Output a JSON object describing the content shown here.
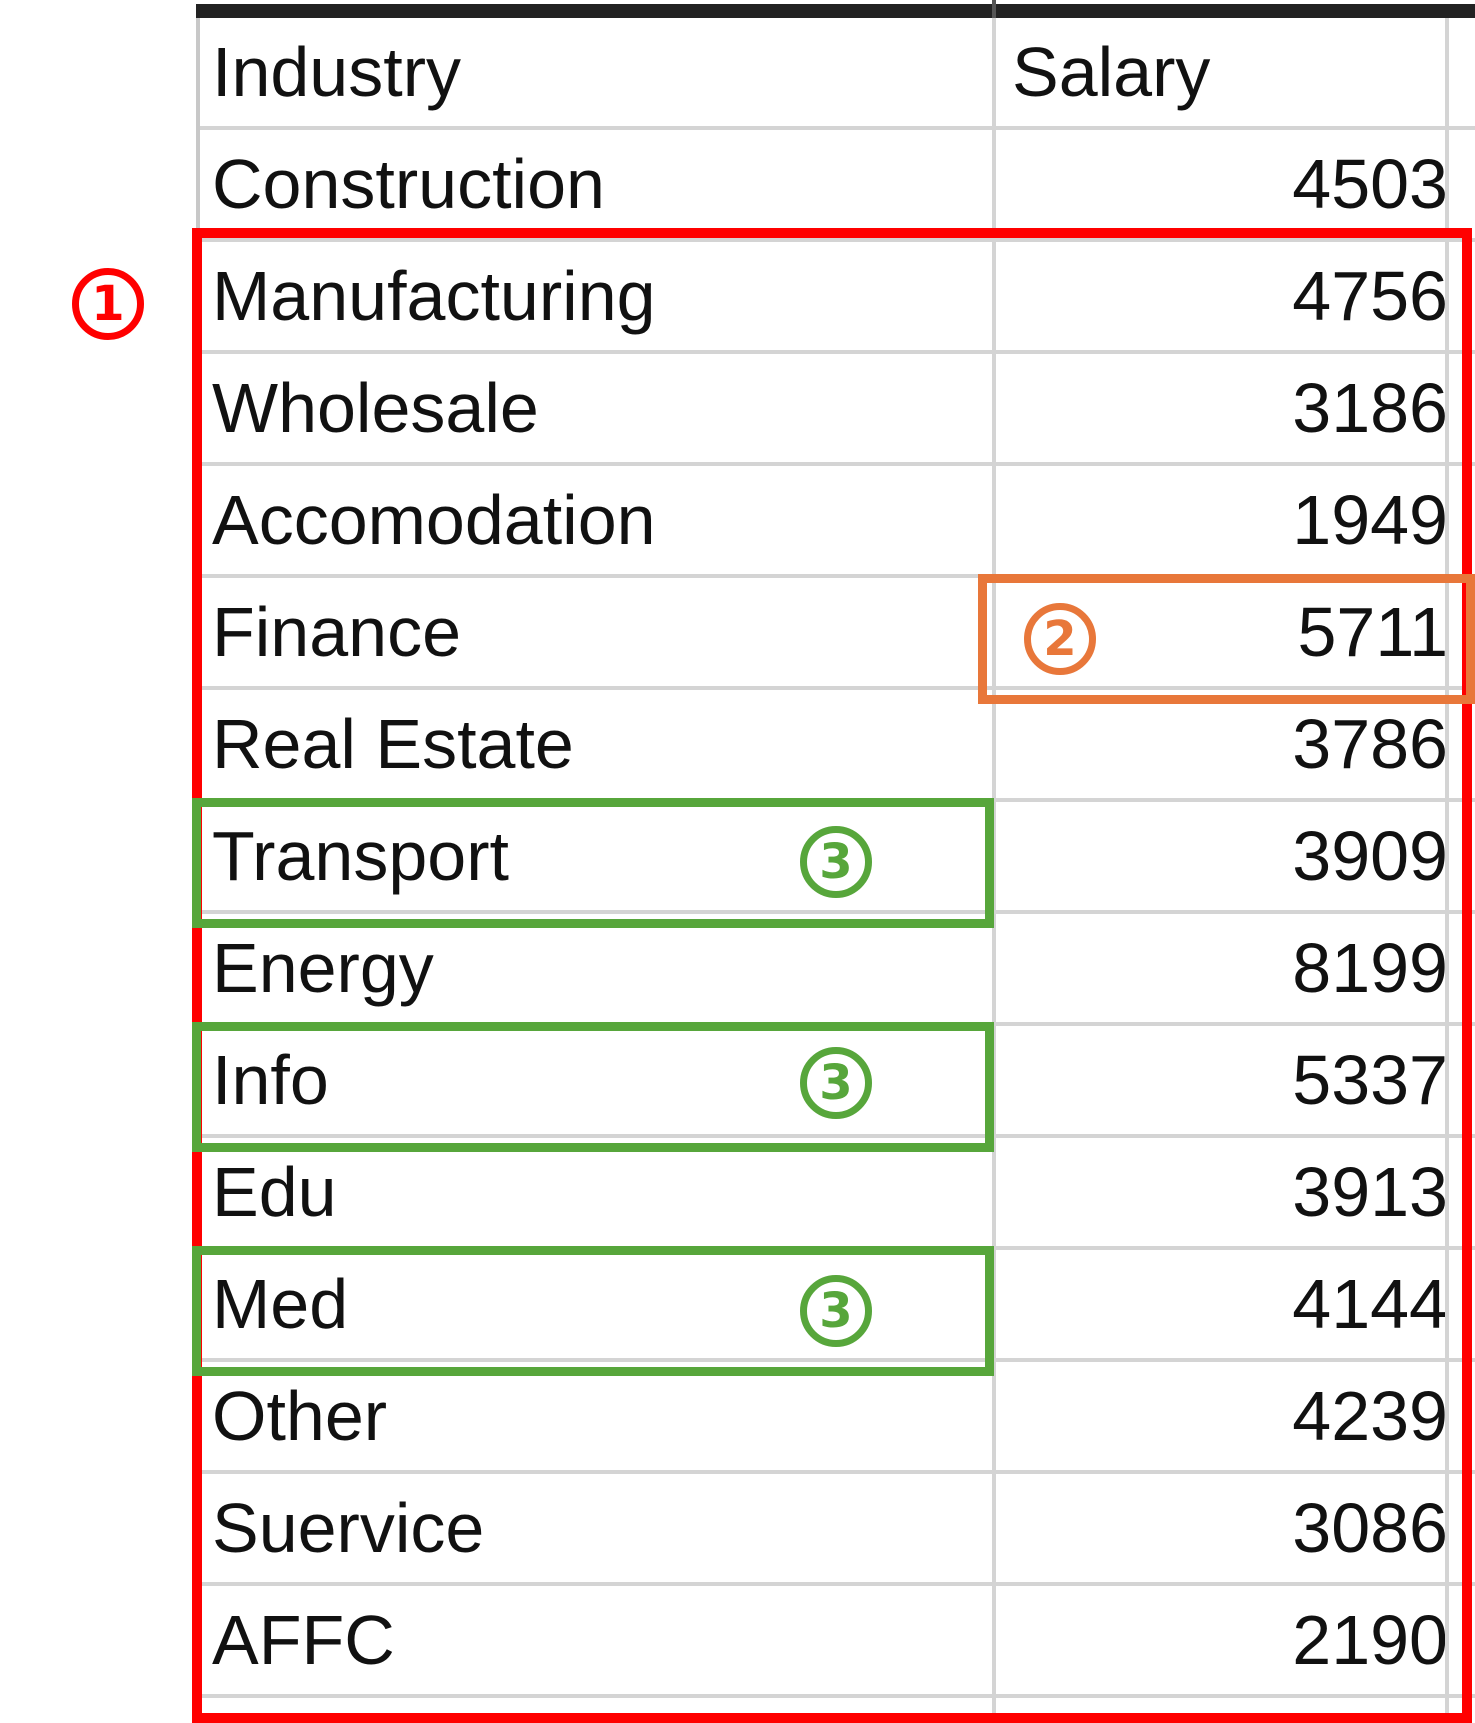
{
  "table": {
    "headers": {
      "industry": "Industry",
      "salary": "Salary"
    },
    "rows": [
      {
        "industry": "Construction",
        "salary": "4503"
      },
      {
        "industry": "Manufacturing",
        "salary": "4756"
      },
      {
        "industry": "Wholesale",
        "salary": "3186"
      },
      {
        "industry": "Accomodation",
        "salary": "1949"
      },
      {
        "industry": "Finance",
        "salary": "5711"
      },
      {
        "industry": "Real Estate",
        "salary": "3786"
      },
      {
        "industry": "Transport",
        "salary": "3909"
      },
      {
        "industry": "Energy",
        "salary": "8199"
      },
      {
        "industry": "Info",
        "salary": "5337"
      },
      {
        "industry": "Edu",
        "salary": "3913"
      },
      {
        "industry": "Med",
        "salary": "4144"
      },
      {
        "industry": "Other",
        "salary": "4239"
      },
      {
        "industry": "Suervice",
        "salary": "3086"
      },
      {
        "industry": "AFFC",
        "salary": "2190"
      }
    ]
  },
  "annotations": {
    "marker_1": "1",
    "marker_2": "2",
    "marker_3": "3",
    "colors": {
      "red": "#ff0000",
      "orange": "#e8773a",
      "green": "#57a63b"
    }
  }
}
